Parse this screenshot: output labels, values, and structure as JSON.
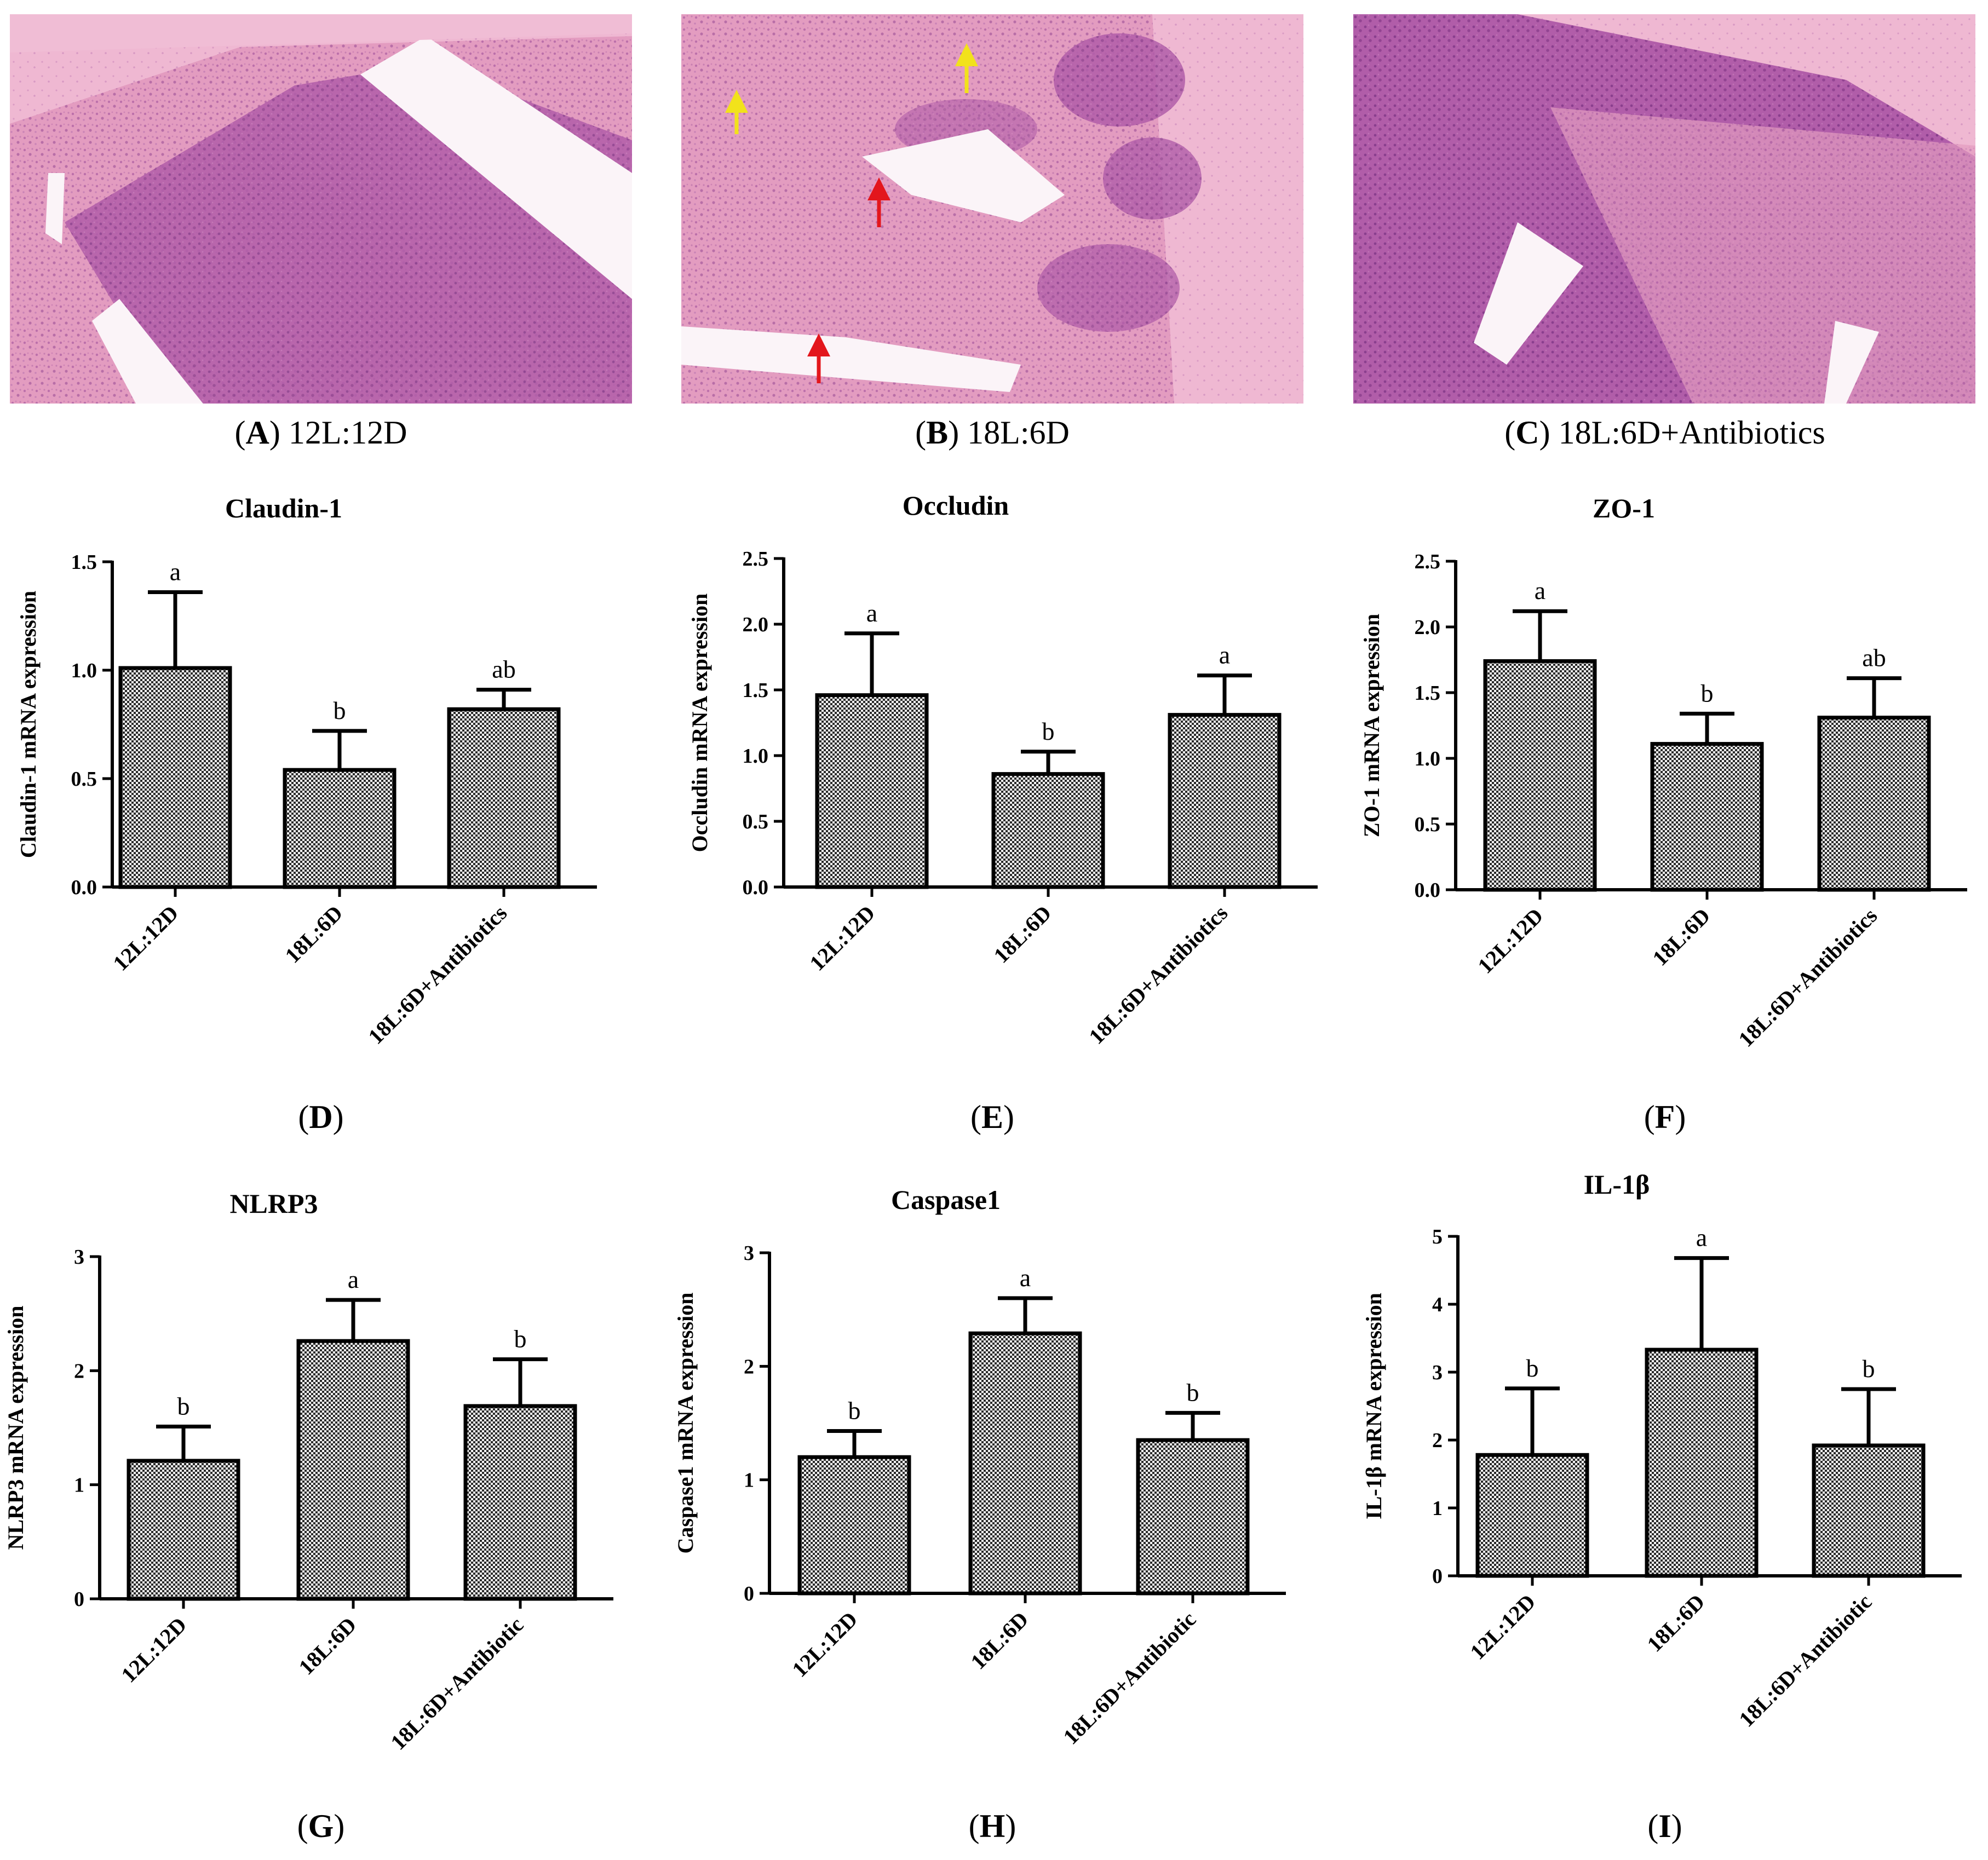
{
  "figure": {
    "histology": [
      {
        "letter": "A",
        "caption": "12L:12D",
        "arrows": []
      },
      {
        "letter": "B",
        "caption": "18L:6D",
        "arrows": [
          "yellow",
          "yellow",
          "red",
          "red"
        ]
      },
      {
        "letter": "C",
        "caption": "18L:6D+Antibiotics",
        "arrows": []
      }
    ],
    "colors": {
      "tissue_base": "#e8a6c6",
      "tissue_dark": "#a2539c",
      "lumen": "#fbf4f8",
      "arrow_yellow": "#f2e21b",
      "arrow_red": "#e3161c",
      "bar_fill": "#5a5a5a",
      "bar_stroke": "#000000"
    }
  },
  "chart_data": [
    {
      "panel": "D",
      "type": "bar",
      "title": "Claudin-1",
      "ylabel": "Claudin-1 mRNA expression",
      "categories": [
        "12L:12D",
        "18L:6D",
        "18L:6D+Antibiotics"
      ],
      "values": [
        1.01,
        0.54,
        0.82
      ],
      "errors": [
        0.35,
        0.18,
        0.09
      ],
      "letters": [
        "a",
        "b",
        "ab"
      ],
      "ylim": [
        0,
        1.5
      ],
      "yticks": [
        "0.0",
        "0.5",
        "1.0",
        "1.5"
      ]
    },
    {
      "panel": "E",
      "type": "bar",
      "title": "Occludin",
      "ylabel": "Occludin mRNA expression",
      "categories": [
        "12L:12D",
        "18L:6D",
        "18L:6D+Antibiotics"
      ],
      "values": [
        1.46,
        0.86,
        1.31
      ],
      "errors": [
        0.47,
        0.17,
        0.3
      ],
      "letters": [
        "a",
        "b",
        "a"
      ],
      "ylim": [
        0,
        2.5
      ],
      "yticks": [
        "0.0",
        "0.5",
        "1.0",
        "1.5",
        "2.0",
        "2.5"
      ]
    },
    {
      "panel": "F",
      "type": "bar",
      "title": "ZO-1",
      "ylabel": "ZO-1 mRNA expression",
      "categories": [
        "12L:12D",
        "18L:6D",
        "18L:6D+Antibiotics"
      ],
      "values": [
        1.74,
        1.11,
        1.31
      ],
      "errors": [
        0.38,
        0.23,
        0.3
      ],
      "letters": [
        "a",
        "b",
        "ab"
      ],
      "ylim": [
        0,
        2.5
      ],
      "yticks": [
        "0.0",
        "0.5",
        "1.0",
        "1.5",
        "2.0",
        "2.5"
      ]
    },
    {
      "panel": "G",
      "type": "bar",
      "title": "NLRP3",
      "ylabel": "NLRP3 mRNA expression",
      "categories": [
        "12L:12D",
        "18L:6D",
        "18L:6D+Antibiotic"
      ],
      "values": [
        1.21,
        2.26,
        1.69
      ],
      "errors": [
        0.3,
        0.36,
        0.41
      ],
      "letters": [
        "b",
        "a",
        "b"
      ],
      "ylim": [
        0,
        3
      ],
      "yticks": [
        "0",
        "1",
        "2",
        "3"
      ]
    },
    {
      "panel": "H",
      "type": "bar",
      "title": "Caspase1",
      "ylabel": "Caspase1 mRNA expression",
      "categories": [
        "12L:12D",
        "18L:6D",
        "18L:6D+Antibiotic"
      ],
      "values": [
        1.2,
        2.29,
        1.35
      ],
      "errors": [
        0.23,
        0.31,
        0.24
      ],
      "letters": [
        "b",
        "a",
        "b"
      ],
      "ylim": [
        0,
        3
      ],
      "yticks": [
        "0",
        "1",
        "2",
        "3"
      ]
    },
    {
      "panel": "I",
      "type": "bar",
      "title": "IL-1β",
      "ylabel": "IL-1β  mRNA expression",
      "categories": [
        "12L:12D",
        "18L:6D",
        "18L:6D+Antibiotic"
      ],
      "values": [
        1.78,
        3.33,
        1.92
      ],
      "errors": [
        0.98,
        1.35,
        0.83
      ],
      "letters": [
        "b",
        "a",
        "b"
      ],
      "ylim": [
        0,
        5
      ],
      "yticks": [
        "0",
        "1",
        "2",
        "3",
        "4",
        "5"
      ]
    }
  ]
}
